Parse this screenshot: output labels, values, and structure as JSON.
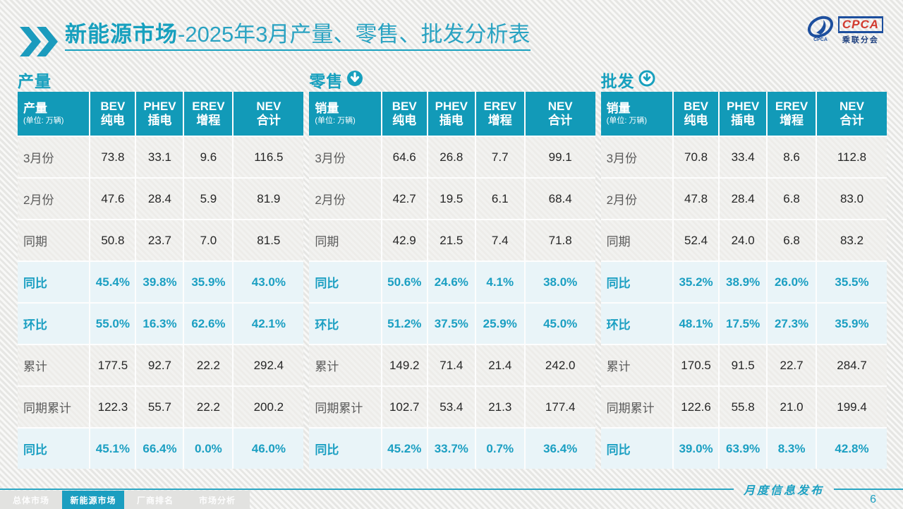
{
  "title": {
    "highlight": "新能源市场",
    "rest": "-2025年3月产量、零售、批发分析表"
  },
  "logo": {
    "main": "CPCA",
    "sub": "乘联分会"
  },
  "watermark_text": "CPCA 乘联分会",
  "colors": {
    "header_teal": "#129ab8",
    "accent_teal": "#1b9fc2",
    "highlight_row_bg": "#e9f4f8"
  },
  "tables": [
    {
      "section_label": "产量",
      "icon": "none",
      "first_col": {
        "label": "产量",
        "unit": "(单位: 万辆)"
      },
      "columns": [
        {
          "en": "BEV",
          "zh": "纯电"
        },
        {
          "en": "PHEV",
          "zh": "插电"
        },
        {
          "en": "EREV",
          "zh": "增程"
        },
        {
          "en": "NEV",
          "zh": "合计"
        }
      ],
      "rows": [
        {
          "label": "3月份",
          "type": "normal",
          "values": [
            "73.8",
            "33.1",
            "9.6",
            "116.5"
          ]
        },
        {
          "label": "2月份",
          "type": "normal",
          "values": [
            "47.6",
            "28.4",
            "5.9",
            "81.9"
          ]
        },
        {
          "label": "同期",
          "type": "normal",
          "values": [
            "50.8",
            "23.7",
            "7.0",
            "81.5"
          ]
        },
        {
          "label": "同比",
          "type": "highlight",
          "values": [
            "45.4%",
            "39.8%",
            "35.9%",
            "43.0%"
          ]
        },
        {
          "label": "环比",
          "type": "highlight",
          "values": [
            "55.0%",
            "16.3%",
            "62.6%",
            "42.1%"
          ]
        },
        {
          "label": "累计",
          "type": "normal",
          "values": [
            "177.5",
            "92.7",
            "22.2",
            "292.4"
          ]
        },
        {
          "label": "同期累计",
          "type": "normal",
          "values": [
            "122.3",
            "55.7",
            "22.2",
            "200.2"
          ]
        },
        {
          "label": "同比",
          "type": "highlight",
          "values": [
            "45.1%",
            "66.4%",
            "0.0%",
            "46.0%"
          ]
        }
      ]
    },
    {
      "section_label": "零售",
      "icon": "circle-arrow-down-filled",
      "first_col": {
        "label": "销量",
        "unit": "(单位: 万辆)"
      },
      "columns": [
        {
          "en": "BEV",
          "zh": "纯电"
        },
        {
          "en": "PHEV",
          "zh": "插电"
        },
        {
          "en": "EREV",
          "zh": "增程"
        },
        {
          "en": "NEV",
          "zh": "合计"
        }
      ],
      "rows": [
        {
          "label": "3月份",
          "type": "normal",
          "values": [
            "64.6",
            "26.8",
            "7.7",
            "99.1"
          ]
        },
        {
          "label": "2月份",
          "type": "normal",
          "values": [
            "42.7",
            "19.5",
            "6.1",
            "68.4"
          ]
        },
        {
          "label": "同期",
          "type": "normal",
          "values": [
            "42.9",
            "21.5",
            "7.4",
            "71.8"
          ]
        },
        {
          "label": "同比",
          "type": "highlight",
          "values": [
            "50.6%",
            "24.6%",
            "4.1%",
            "38.0%"
          ]
        },
        {
          "label": "环比",
          "type": "highlight",
          "values": [
            "51.2%",
            "37.5%",
            "25.9%",
            "45.0%"
          ]
        },
        {
          "label": "累计",
          "type": "normal",
          "values": [
            "149.2",
            "71.4",
            "21.4",
            "242.0"
          ]
        },
        {
          "label": "同期累计",
          "type": "normal",
          "values": [
            "102.7",
            "53.4",
            "21.3",
            "177.4"
          ]
        },
        {
          "label": "同比",
          "type": "highlight",
          "values": [
            "45.2%",
            "33.7%",
            "0.7%",
            "36.4%"
          ]
        }
      ]
    },
    {
      "section_label": "批发",
      "icon": "circle-arrow-down-outline",
      "first_col": {
        "label": "销量",
        "unit": "(单位: 万辆)"
      },
      "columns": [
        {
          "en": "BEV",
          "zh": "纯电"
        },
        {
          "en": "PHEV",
          "zh": "插电"
        },
        {
          "en": "EREV",
          "zh": "增程"
        },
        {
          "en": "NEV",
          "zh": "合计"
        }
      ],
      "rows": [
        {
          "label": "3月份",
          "type": "normal",
          "values": [
            "70.8",
            "33.4",
            "8.6",
            "112.8"
          ]
        },
        {
          "label": "2月份",
          "type": "normal",
          "values": [
            "47.8",
            "28.4",
            "6.8",
            "83.0"
          ]
        },
        {
          "label": "同期",
          "type": "normal",
          "values": [
            "52.4",
            "24.0",
            "6.8",
            "83.2"
          ]
        },
        {
          "label": "同比",
          "type": "highlight",
          "values": [
            "35.2%",
            "38.9%",
            "26.0%",
            "35.5%"
          ]
        },
        {
          "label": "环比",
          "type": "highlight",
          "values": [
            "48.1%",
            "17.5%",
            "27.3%",
            "35.9%"
          ]
        },
        {
          "label": "累计",
          "type": "normal",
          "values": [
            "170.5",
            "91.5",
            "22.7",
            "284.7"
          ]
        },
        {
          "label": "同期累计",
          "type": "normal",
          "values": [
            "122.6",
            "55.8",
            "21.0",
            "199.4"
          ]
        },
        {
          "label": "同比",
          "type": "highlight",
          "values": [
            "39.0%",
            "63.9%",
            "8.3%",
            "42.8%"
          ]
        }
      ]
    }
  ],
  "footer": {
    "tabs": [
      "总体市场",
      "新能源市场",
      "厂商排名",
      "市场分析"
    ],
    "active_tab": 1,
    "note": "月度信息发布",
    "page": "6"
  }
}
